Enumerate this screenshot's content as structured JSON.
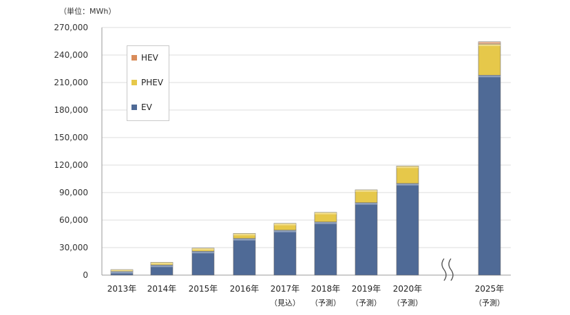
{
  "chart_data": {
    "type": "bar",
    "stacked": true,
    "unit_label": "（単位：MWh）",
    "categories": [
      [
        "2013年",
        ""
      ],
      [
        "2014年",
        ""
      ],
      [
        "2015年",
        ""
      ],
      [
        "2016年",
        ""
      ],
      [
        "2017年",
        "（見込）"
      ],
      [
        "2018年",
        "（予測）"
      ],
      [
        "2019年",
        "（予測）"
      ],
      [
        "2020年",
        "（予測）"
      ],
      [
        "2025年",
        "（予測）"
      ]
    ],
    "series": [
      {
        "name": "EV",
        "color": "#4f6a96",
        "values": [
          4000,
          11000,
          26000,
          40000,
          49000,
          58000,
          79000,
          100000,
          218000
        ]
      },
      {
        "name": "PHEV",
        "color": "#e6c84a",
        "values": [
          2000,
          3000,
          3500,
          5500,
          7500,
          10500,
          14000,
          19000,
          34000
        ]
      },
      {
        "name": "HEV",
        "color": "#d98c5a",
        "values": [
          0,
          0,
          0,
          0,
          0,
          0,
          0,
          0,
          2500
        ]
      }
    ],
    "ylim": [
      0,
      270000
    ],
    "yticks": [
      "0",
      "30,000",
      "60,000",
      "90,000",
      "120,000",
      "150,000",
      "180,000",
      "210,000",
      "240,000",
      "270,000"
    ],
    "grid": true,
    "axis_break": "between 2020年 and 2025年",
    "legend": [
      "HEV",
      "PHEV",
      "EV"
    ]
  }
}
